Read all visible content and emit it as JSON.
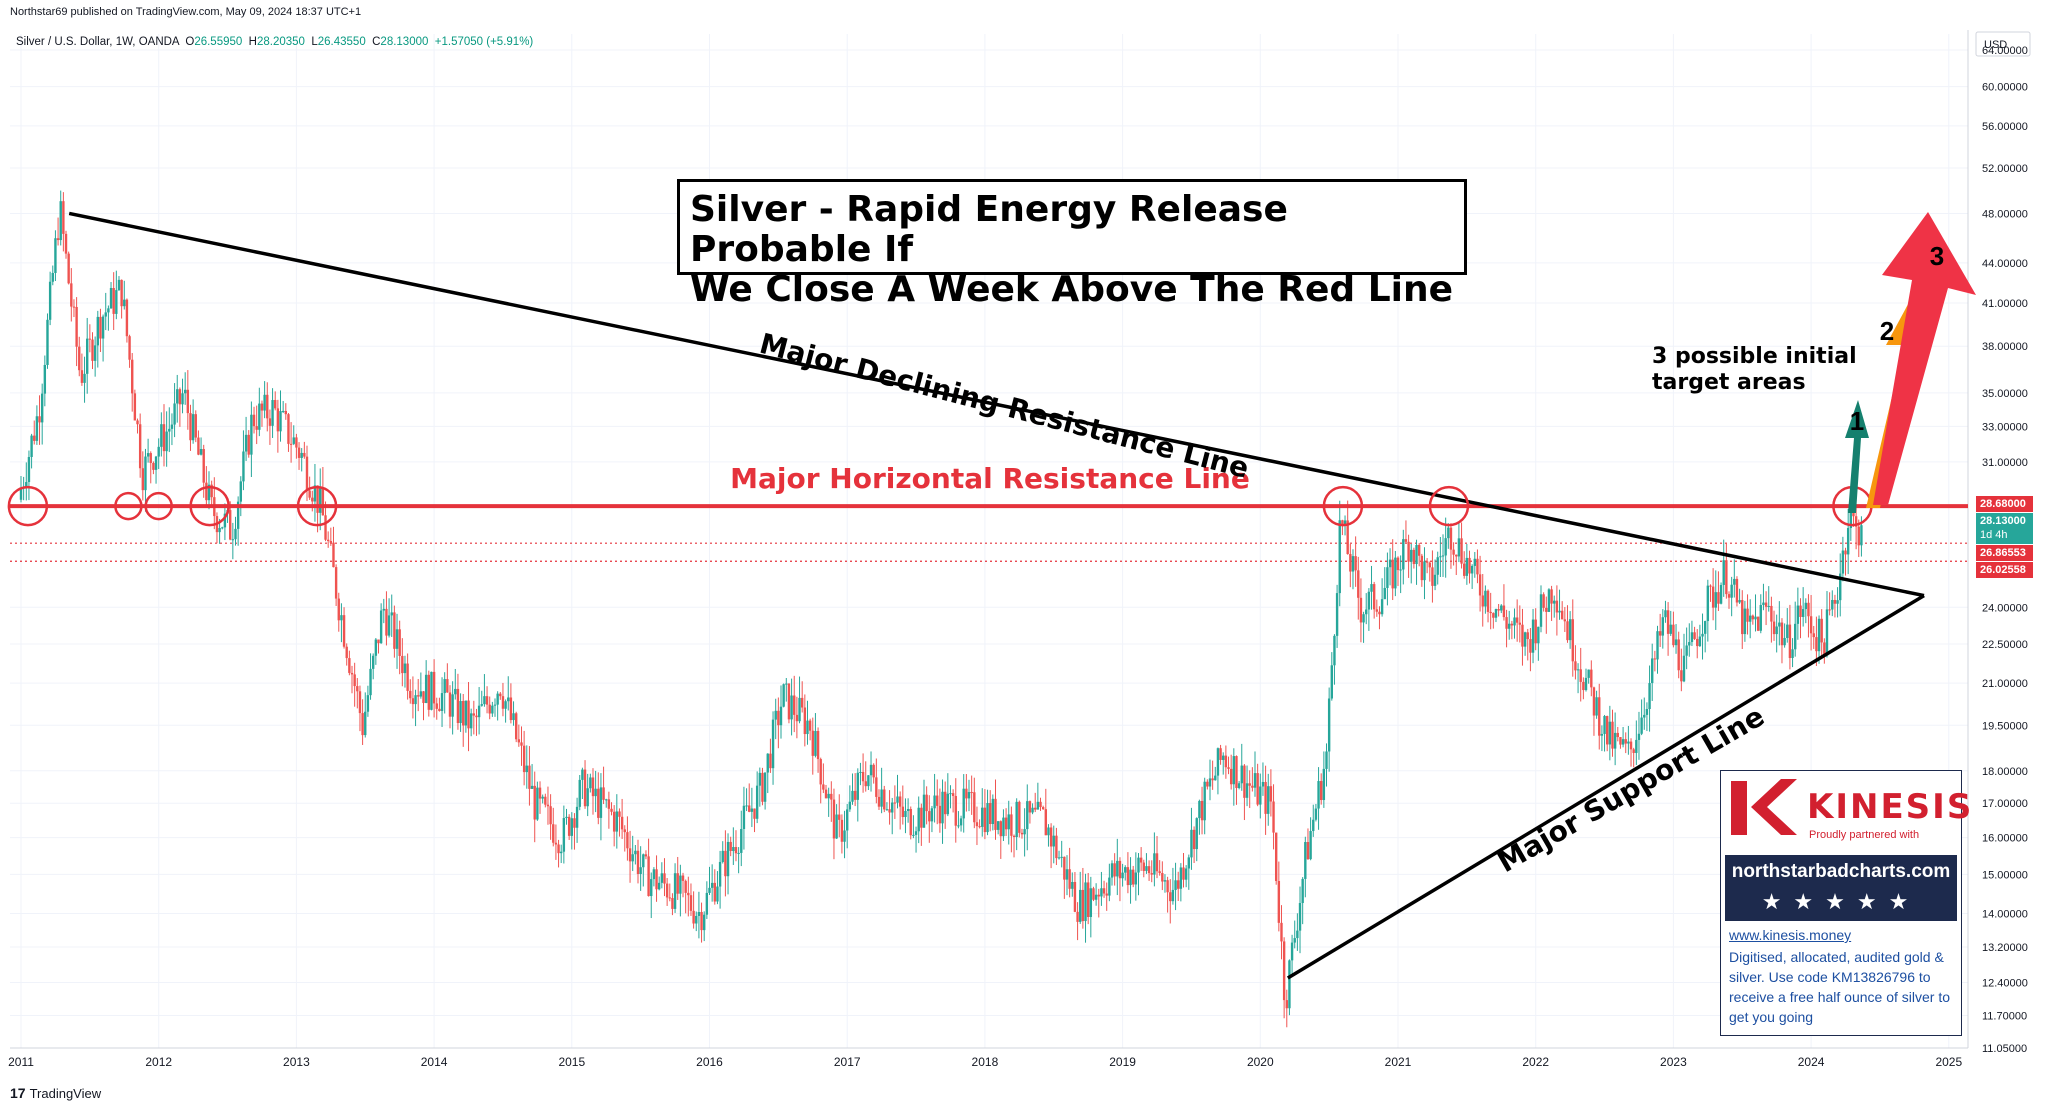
{
  "header": {
    "published": "Northstar69 published on TradingView.com, May 09, 2024 18:37 UTC+1"
  },
  "legend": {
    "symbol": "Silver / U.S. Dollar, 1W, OANDA",
    "o_label": "O",
    "o_value": "26.55950",
    "h_label": "H",
    "h_value": "28.20350",
    "l_label": "L",
    "l_value": "26.43550",
    "c_label": "C",
    "c_value": "28.13000",
    "change": "+1.57050 (+5.91%)"
  },
  "currency": "USD",
  "title_box": {
    "line1": "Silver - Rapid Energy Release Probable If",
    "line2": "We Close A Week Above The Red Line"
  },
  "annotations": {
    "declining": "Major Declining Resistance Line",
    "horizontal": "Major Horizontal Resistance Line",
    "support": "Major Support Line",
    "targets_line1": "3 possible initial",
    "targets_line2": "target areas",
    "arrow1": "1",
    "arrow2": "2",
    "arrow3": "3"
  },
  "price_tags": {
    "resistance": "28.68000",
    "last": "28.13000",
    "countdown": "1d 4h",
    "low1": "26.86553",
    "low2": "26.02558"
  },
  "ad": {
    "brand": "KINESIS",
    "partner": "Proudly partnered with",
    "site": "northstarbadcharts.com",
    "stars": "★★★★★",
    "url": "www.kinesis.money",
    "desc": "Digitised, allocated, audited gold & silver. Use code KM13826796 to receive a free half ounce of silver to get you going"
  },
  "footer": {
    "logo": "17",
    "brand": "TradingView"
  },
  "colors": {
    "up": "#26a69a",
    "down": "#ef5350",
    "red_line": "#e5323b",
    "arrow1": "#15806e",
    "arrow2": "#f7960e",
    "arrow3": "#ef3346"
  },
  "chart_data": {
    "type": "candlestick",
    "title": "Silver / U.S. Dollar, 1W, OANDA",
    "y_scale": "log",
    "ylim": [
      11.05,
      64.0
    ],
    "xlim": [
      2011.0,
      2025.25
    ],
    "y_ticks": [
      64.0,
      60.0,
      56.0,
      52.0,
      48.0,
      44.0,
      41.0,
      38.0,
      35.0,
      33.0,
      31.0,
      28.68,
      24.0,
      22.5,
      21.0,
      19.5,
      18.0,
      17.0,
      16.0,
      15.0,
      14.0,
      13.2,
      12.4,
      11.7,
      11.05
    ],
    "y_tick_labels": [
      "64.00000",
      "60.00000",
      "56.00000",
      "52.00000",
      "48.00000",
      "44.00000",
      "41.00000",
      "38.00000",
      "35.00000",
      "33.00000",
      "31.00000",
      "",
      "24.00000",
      "22.50000",
      "21.00000",
      "19.50000",
      "18.00000",
      "17.00000",
      "16.00000",
      "15.00000",
      "14.00000",
      "13.20000",
      "12.40000",
      "11.70000",
      "11.05000"
    ],
    "x_ticks": [
      "2011",
      "2012",
      "2013",
      "2014",
      "2015",
      "2016",
      "2017",
      "2018",
      "2019",
      "2020",
      "2021",
      "2022",
      "2023",
      "2024",
      "2025"
    ],
    "price_path": [
      [
        2011.0,
        29.0
      ],
      [
        2011.15,
        34.0
      ],
      [
        2011.3,
        48.5
      ],
      [
        2011.45,
        36.0
      ],
      [
        2011.6,
        40.0
      ],
      [
        2011.75,
        42.0
      ],
      [
        2011.9,
        30.5
      ],
      [
        2012.1,
        33.0
      ],
      [
        2012.2,
        35.0
      ],
      [
        2012.4,
        28.5
      ],
      [
        2012.55,
        27.5
      ],
      [
        2012.7,
        33.5
      ],
      [
        2012.85,
        34.0
      ],
      [
        2013.05,
        31.5
      ],
      [
        2013.2,
        28.5
      ],
      [
        2013.35,
        23.5
      ],
      [
        2013.5,
        19.5
      ],
      [
        2013.65,
        24.0
      ],
      [
        2013.85,
        21.0
      ],
      [
        2014.1,
        20.5
      ],
      [
        2014.3,
        19.5
      ],
      [
        2014.5,
        21.0
      ],
      [
        2014.75,
        17.0
      ],
      [
        2014.95,
        16.0
      ],
      [
        2015.1,
        17.5
      ],
      [
        2015.35,
        16.5
      ],
      [
        2015.55,
        15.0
      ],
      [
        2015.8,
        14.5
      ],
      [
        2015.95,
        14.0
      ],
      [
        2016.15,
        15.5
      ],
      [
        2016.4,
        17.5
      ],
      [
        2016.55,
        20.5
      ],
      [
        2016.75,
        19.5
      ],
      [
        2016.95,
        16.0
      ],
      [
        2017.15,
        18.0
      ],
      [
        2017.45,
        16.5
      ],
      [
        2017.7,
        17.0
      ],
      [
        2017.95,
        16.8
      ],
      [
        2018.2,
        16.5
      ],
      [
        2018.45,
        16.5
      ],
      [
        2018.7,
        14.2
      ],
      [
        2018.95,
        15.0
      ],
      [
        2019.2,
        15.2
      ],
      [
        2019.4,
        14.6
      ],
      [
        2019.6,
        17.0
      ],
      [
        2019.75,
        18.5
      ],
      [
        2019.95,
        17.5
      ],
      [
        2020.1,
        17.0
      ],
      [
        2020.2,
        12.0
      ],
      [
        2020.35,
        15.5
      ],
      [
        2020.5,
        18.5
      ],
      [
        2020.6,
        28.0
      ],
      [
        2020.75,
        24.0
      ],
      [
        2020.9,
        24.5
      ],
      [
        2021.1,
        27.0
      ],
      [
        2021.25,
        25.0
      ],
      [
        2021.4,
        27.5
      ],
      [
        2021.6,
        25.0
      ],
      [
        2021.8,
        23.5
      ],
      [
        2021.95,
        22.5
      ],
      [
        2022.15,
        25.0
      ],
      [
        2022.35,
        21.5
      ],
      [
        2022.55,
        19.0
      ],
      [
        2022.7,
        18.5
      ],
      [
        2022.85,
        21.0
      ],
      [
        2022.95,
        23.5
      ],
      [
        2023.1,
        21.5
      ],
      [
        2023.25,
        24.0
      ],
      [
        2023.4,
        25.5
      ],
      [
        2023.55,
        23.0
      ],
      [
        2023.7,
        24.0
      ],
      [
        2023.85,
        22.5
      ],
      [
        2023.95,
        24.0
      ],
      [
        2024.1,
        22.5
      ],
      [
        2024.2,
        24.5
      ],
      [
        2024.3,
        28.5
      ],
      [
        2024.36,
        27.0
      ],
      [
        2024.37,
        28.13
      ]
    ],
    "lines": {
      "horizontal_resistance": 28.68,
      "declining_resistance": [
        [
          2011.35,
          48.0
        ],
        [
          2024.82,
          24.5
        ]
      ],
      "support": [
        [
          2020.2,
          12.5
        ],
        [
          2024.82,
          24.5
        ]
      ],
      "dotted_levels": [
        26.86553,
        26.02558
      ]
    },
    "circles": [
      2011.05,
      2011.78,
      2012.0,
      2012.37,
      2013.15,
      2020.6,
      2021.37,
      2024.3
    ]
  }
}
